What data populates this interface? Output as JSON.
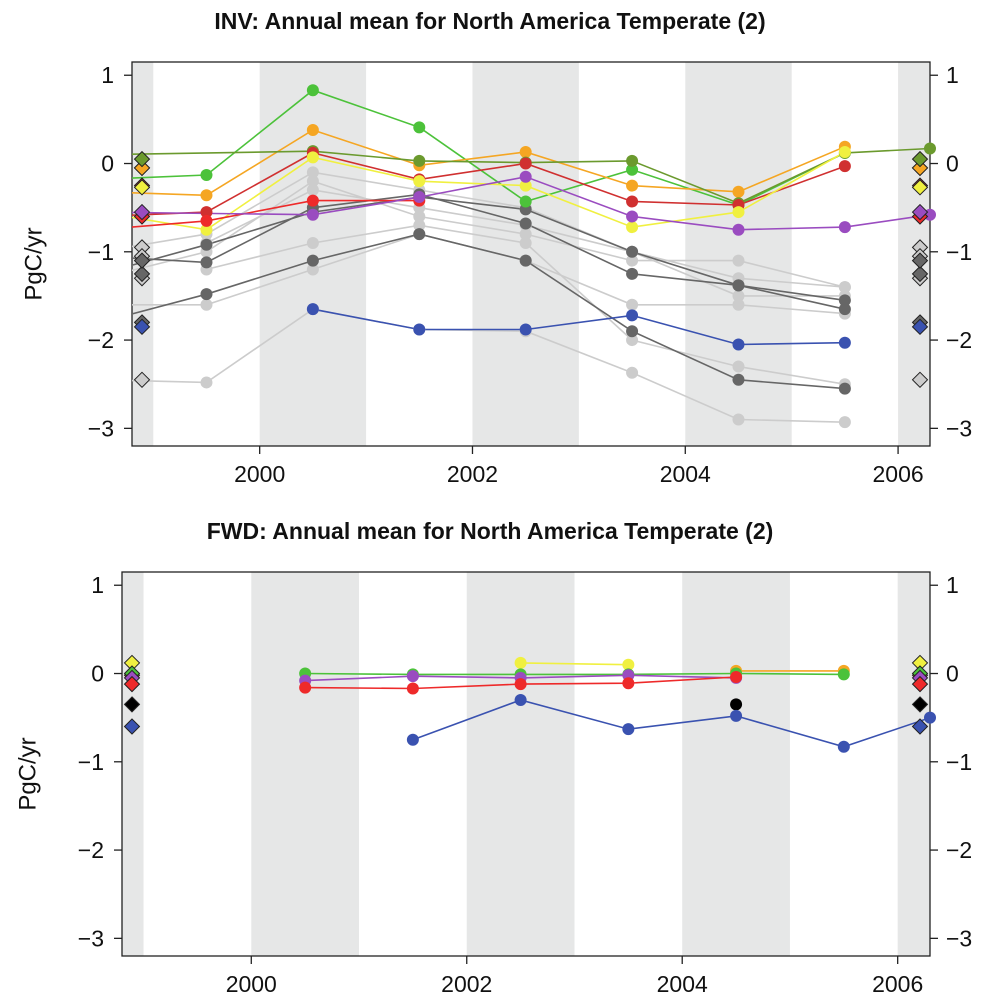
{
  "chart_data": [
    {
      "type": "line",
      "title": "INV:  Annual mean for North America Temperate (2)",
      "ylabel": "PgC/yr",
      "xlabel": "",
      "xlim": [
        1998.8,
        2006.3
      ],
      "ylim": [
        -3.2,
        1.15
      ],
      "x_ticks": [
        "2000",
        "2002",
        "2004",
        "2006"
      ],
      "y_ticks_left": [
        "−3",
        "−2",
        "−1",
        "0",
        "1"
      ],
      "y_ticks_right": [
        "−3",
        "−2",
        "−1",
        "0",
        "1"
      ],
      "shaded_years": [
        [
          1998.5,
          1999.0
        ],
        [
          2000.0,
          2001.0
        ],
        [
          2002.0,
          2003.0
        ],
        [
          2004.0,
          2005.0
        ],
        [
          2006.0,
          2006.5
        ]
      ],
      "grid": false,
      "legend": "none",
      "series": [
        {
          "color": "#cccccc",
          "x": [
            1998.5,
            1999.5,
            2000.5,
            2001.5,
            2002.5,
            2003.5,
            2004.5,
            2005.5
          ],
          "y": [
            -1.0,
            -0.8,
            -0.1,
            -0.3,
            -0.5,
            -1.0,
            -1.3,
            -1.4
          ],
          "left": -0.95,
          "right": -0.95
        },
        {
          "color": "#cccccc",
          "x": [
            1998.5,
            1999.5,
            2000.5,
            2001.5,
            2002.5,
            2003.5,
            2004.5,
            2005.5
          ],
          "y": [
            -1.3,
            -1.0,
            -0.2,
            -0.6,
            -0.8,
            -1.1,
            -1.1,
            -1.4
          ],
          "left": -1.3,
          "right": -1.3
        },
        {
          "color": "#cccccc",
          "x": [
            1998.5,
            1999.5,
            2000.5,
            2001.5,
            2002.5,
            2003.5,
            2004.5,
            2005.5
          ],
          "y": [
            -1.6,
            -1.6,
            -1.2,
            -0.8,
            -1.1,
            -1.6,
            -1.6,
            -1.7
          ],
          "left": -1.05,
          "right": -1.05
        },
        {
          "color": "#cccccc",
          "x": [
            1998.5,
            1999.5,
            2000.5,
            2001.5,
            2002.5,
            2003.5,
            2004.5,
            2005.5
          ],
          "y": [
            -2.45,
            -2.48,
            -1.65,
            -1.88,
            -1.9,
            -2.37,
            -2.9,
            -2.93
          ],
          "left": -2.45,
          "right": -2.45
        },
        {
          "color": "#cccccc",
          "x": [
            1999.5,
            2000.5,
            2001.5,
            2002.5,
            2003.5,
            2004.5,
            2005.5
          ],
          "y": [
            -1.2,
            -0.9,
            -0.7,
            -0.9,
            -2.0,
            -2.3,
            -2.5
          ],
          "left": null,
          "right": null
        },
        {
          "color": "#cccccc",
          "x": [
            1999.5,
            2000.5,
            2001.5,
            2002.5,
            2003.5,
            2004.5,
            2005.5
          ],
          "y": [
            -0.9,
            -0.3,
            -0.5,
            -0.7,
            -1.0,
            -1.5,
            -1.5
          ],
          "left": null,
          "right": null
        },
        {
          "color": "#666666",
          "x": [
            1998.5,
            1999.5,
            2000.5,
            2001.5,
            2002.5,
            2003.5,
            2004.5,
            2005.5
          ],
          "y": [
            -1.25,
            -0.92,
            -0.55,
            -0.38,
            -0.52,
            -1.0,
            -1.38,
            -1.55
          ],
          "left": -1.25,
          "right": -1.25
        },
        {
          "color": "#666666",
          "x": [
            1998.5,
            1999.5,
            2000.5,
            2001.5,
            2002.5,
            2003.5,
            2004.5,
            2005.5
          ],
          "y": [
            -1.8,
            -1.48,
            -1.1,
            -0.8,
            -1.1,
            -1.9,
            -2.45,
            -2.55
          ],
          "left": -1.8,
          "right": -1.8
        },
        {
          "color": "#666666",
          "x": [
            1998.5,
            1999.5,
            2000.5,
            2001.5,
            2002.5,
            2003.5,
            2004.5,
            2005.5
          ],
          "y": [
            -1.05,
            -1.12,
            -0.5,
            -0.35,
            -0.68,
            -1.25,
            -1.38,
            -1.65
          ],
          "left": -1.1,
          "right": -1.1
        },
        {
          "color": "#4cc23a",
          "x": [
            1998.5,
            1999.5,
            2000.5,
            2001.5,
            2002.5,
            2003.5,
            2004.5,
            2005.5
          ],
          "y": [
            -0.18,
            -0.13,
            0.83,
            0.41,
            -0.43,
            -0.07,
            -0.47,
            0.12
          ],
          "left": -0.05,
          "right": -0.05
        },
        {
          "color": "#f5a623",
          "x": [
            1998.5,
            1999.5,
            2000.5,
            2001.5,
            2002.5,
            2003.5,
            2004.5,
            2005.5
          ],
          "y": [
            -0.32,
            -0.36,
            0.38,
            -0.02,
            0.13,
            -0.25,
            -0.32,
            0.19
          ],
          "left": -0.05,
          "right": -0.05
        },
        {
          "color": "#6b9a2e",
          "x": [
            1998.5,
            2000.5,
            2001.5,
            2002.5,
            2003.5,
            2004.5,
            2005.5,
            2006.3
          ],
          "y": [
            0.1,
            0.14,
            0.03,
            0.01,
            0.03,
            -0.45,
            0.12,
            0.17
          ],
          "left": 0.05,
          "right": 0.05
        },
        {
          "color": "#d03030",
          "x": [
            1998.5,
            1999.5,
            2000.5,
            2001.5,
            2002.5,
            2003.5,
            2004.5,
            2005.5
          ],
          "y": [
            -0.6,
            -0.55,
            0.12,
            -0.18,
            0.0,
            -0.43,
            -0.47,
            -0.03
          ],
          "left": -0.25,
          "right": -0.25
        },
        {
          "color": "#f0f040",
          "x": [
            1998.5,
            1999.5,
            2000.5,
            2001.5,
            2002.5,
            2003.5,
            2004.5,
            2005.5
          ],
          "y": [
            -0.55,
            -0.75,
            0.07,
            -0.2,
            -0.25,
            -0.72,
            -0.55,
            0.13
          ],
          "left": -0.27,
          "right": -0.27
        },
        {
          "color": "#ee2a2a",
          "x": [
            1998.5,
            1999.5,
            2000.5,
            2001.5,
            2002.5,
            2003.5,
            2004.5,
            2005.5
          ],
          "y": [
            -0.75,
            -0.65,
            -0.42,
            -0.42,
            null,
            null,
            null,
            null
          ],
          "left": -0.6,
          "right": -0.6
        },
        {
          "color": "#9a4cc0",
          "x": [
            1998.5,
            2000.5,
            2001.5,
            2002.5,
            2003.5,
            2004.5,
            2005.5,
            2006.3
          ],
          "y": [
            -0.55,
            -0.58,
            -0.38,
            -0.15,
            -0.6,
            -0.75,
            -0.72,
            -0.58
          ],
          "left": -0.55,
          "right": -0.55
        },
        {
          "color": "#3a52b0",
          "x": [
            2000.5,
            2001.5,
            2002.5,
            2003.5,
            2004.5,
            2005.5
          ],
          "y": [
            -1.65,
            -1.88,
            -1.88,
            -1.72,
            -2.05,
            -2.03
          ],
          "left": -1.85,
          "right": -1.85
        }
      ]
    },
    {
      "type": "line",
      "title": "FWD: Annual mean for North America Temperate (2)",
      "ylabel": "PgC/yr",
      "xlabel": "",
      "xlim": [
        1998.8,
        2006.3
      ],
      "ylim": [
        -3.2,
        1.15
      ],
      "x_ticks": [
        "2000",
        "2002",
        "2004",
        "2006"
      ],
      "y_ticks_left": [
        "−3",
        "−2",
        "−1",
        "0",
        "1"
      ],
      "y_ticks_right": [
        "−3",
        "−2",
        "−1",
        "0",
        "1"
      ],
      "shaded_years": [
        [
          1998.5,
          1999.0
        ],
        [
          2000.0,
          2001.0
        ],
        [
          2002.0,
          2003.0
        ],
        [
          2004.0,
          2005.0
        ],
        [
          2006.0,
          2006.5
        ]
      ],
      "grid": false,
      "legend": "none",
      "series": [
        {
          "color": "#f0f040",
          "x": [
            2002.5,
            2003.5
          ],
          "y": [
            0.12,
            0.1
          ],
          "left": 0.12,
          "right": 0.12
        },
        {
          "color": "#f5a623",
          "x": [
            2004.5,
            2005.5
          ],
          "y": [
            0.03,
            0.03
          ],
          "left": -0.02,
          "right": -0.02
        },
        {
          "color": "#4cc23a",
          "x": [
            2000.5,
            2001.5,
            2002.5,
            2003.5,
            2004.5,
            2005.5
          ],
          "y": [
            0.0,
            -0.01,
            -0.01,
            -0.01,
            0.0,
            -0.01
          ],
          "left": 0.0,
          "right": 0.0
        },
        {
          "color": "#9a4cc0",
          "x": [
            2000.5,
            2001.5,
            2002.5,
            2003.5,
            2004.5
          ],
          "y": [
            -0.08,
            -0.03,
            -0.05,
            -0.02,
            -0.05
          ],
          "left": -0.05,
          "right": -0.05
        },
        {
          "color": "#ee2a2a",
          "x": [
            2000.5,
            2001.5,
            2002.5,
            2003.5,
            2004.5
          ],
          "y": [
            -0.16,
            -0.17,
            -0.12,
            -0.11,
            -0.04
          ],
          "left": -0.12,
          "right": -0.12
        },
        {
          "color": "#000000",
          "x": [
            2004.5
          ],
          "y": [
            -0.35
          ],
          "left": -0.35,
          "right": -0.35
        },
        {
          "color": "#3a52b0",
          "x": [
            2001.5,
            2002.5,
            2003.5,
            2004.5,
            2005.5,
            2006.3
          ],
          "y": [
            -0.75,
            -0.3,
            -0.63,
            -0.48,
            -0.83,
            -0.5
          ],
          "left": -0.6,
          "right": -0.6
        }
      ]
    }
  ]
}
